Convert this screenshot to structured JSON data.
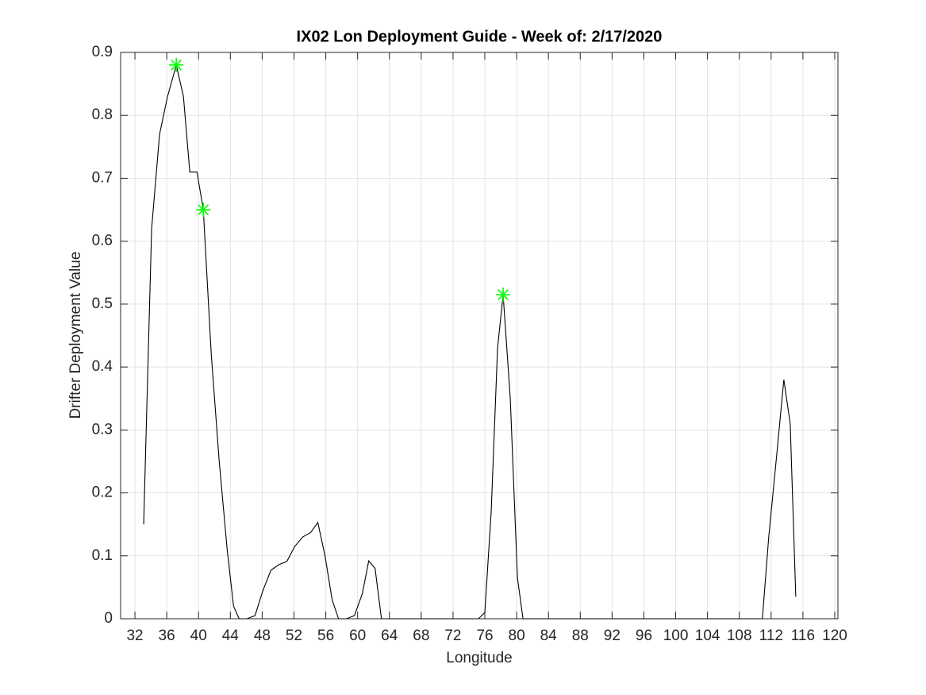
{
  "chart_data": {
    "type": "line",
    "title": "IX02 Lon Deployment Guide - Week of: 2/17/2020",
    "x_label": "Longitude",
    "y_label": "Drifter Deployment Value",
    "xlim": [
      30.2,
      120.4
    ],
    "ylim": [
      0,
      0.9
    ],
    "xticks": [
      32,
      36,
      40,
      44,
      48,
      52,
      56,
      60,
      64,
      68,
      72,
      76,
      80,
      84,
      88,
      92,
      96,
      100,
      104,
      108,
      112,
      116,
      120
    ],
    "yticks": [
      0,
      0.1,
      0.2,
      0.3,
      0.4,
      0.5,
      0.6,
      0.7,
      0.8,
      0.9
    ],
    "grid": true,
    "series": [
      {
        "color": "#000000",
        "marker": "none",
        "x": [
          33.1,
          34.1,
          35.1,
          36.1,
          37.2,
          38.1,
          38.9,
          39.8,
          40.6,
          41.6,
          42.6,
          43.6,
          44.4,
          45.1,
          46.1,
          47.1,
          48.1,
          49.1,
          50.1,
          51.1,
          52.1,
          53.1,
          54.1,
          55.0,
          55.9,
          56.8,
          57.6,
          58.6,
          59.6,
          60.6,
          61.4,
          62.2,
          63.0,
          70.0,
          75.2,
          76.0,
          76.8,
          77.6,
          78.3,
          79.2,
          80.1,
          80.8,
          90.0,
          100.0,
          110.9,
          111.7,
          112.7,
          113.6,
          114.4,
          115.1
        ],
        "values": [
          0.15,
          0.62,
          0.77,
          0.83,
          0.88,
          0.83,
          0.71,
          0.71,
          0.65,
          0.42,
          0.25,
          0.11,
          0.02,
          0,
          0,
          0.005,
          0.045,
          0.077,
          0.086,
          0.091,
          0.115,
          0.13,
          0.137,
          0.153,
          0.1,
          0.03,
          0,
          0,
          0.005,
          0.04,
          0.092,
          0.08,
          0,
          0,
          0,
          0.01,
          0.17,
          0.43,
          0.515,
          0.35,
          0.065,
          0,
          0,
          0,
          0,
          0.13,
          0.26,
          0.38,
          0.31,
          0.035
        ]
      },
      {
        "color": "#00ff00",
        "marker": "asterisk",
        "x": [
          37.2,
          40.6,
          78.3
        ],
        "values": [
          0.88,
          0.65,
          0.515
        ]
      }
    ]
  }
}
